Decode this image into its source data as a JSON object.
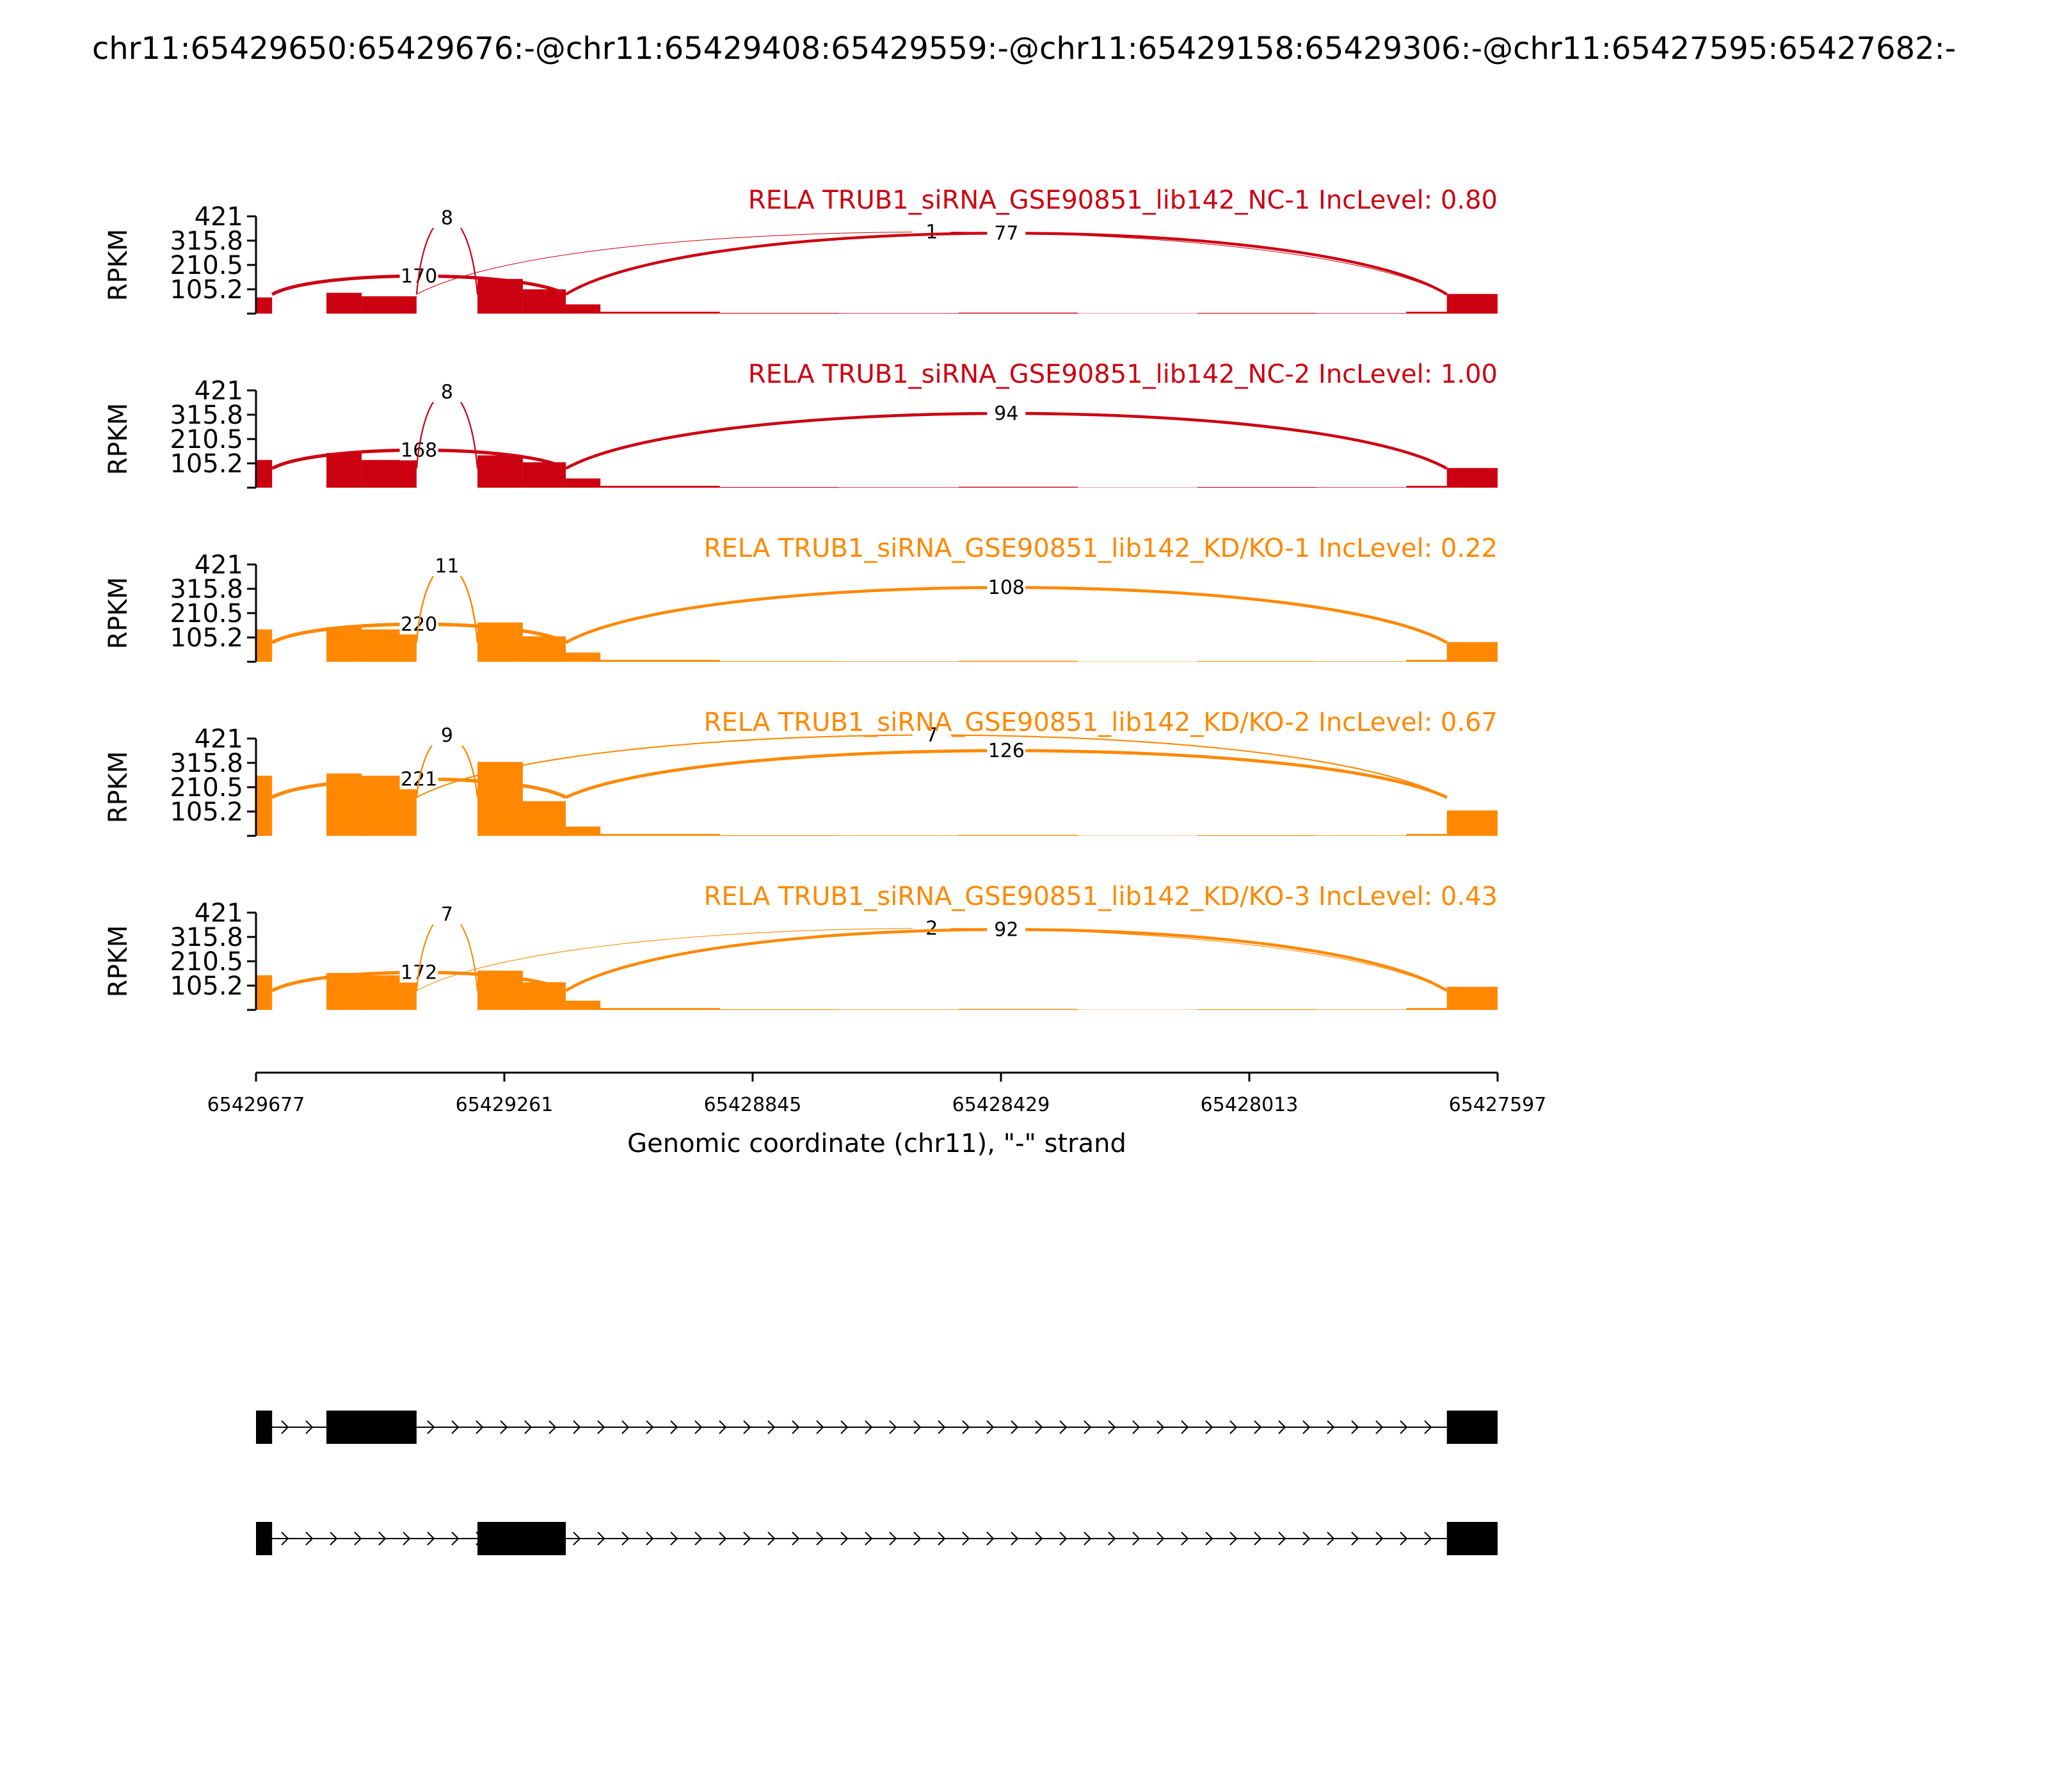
{
  "chart_data": {
    "type": "sashimi",
    "title": "chr11:65429650:65429676:-@chr11:65429408:65429559:-@chr11:65429158:65429306:-@chr11:65427595:65427682:-",
    "xlabel": "Genomic coordinate (chr11), \"-\" strand",
    "ylabel": "RPKM",
    "x_range": [
      65429677,
      65427597
    ],
    "x_ticks": [
      "65429677",
      "65429261",
      "65428845",
      "65428429",
      "65428013",
      "65427597"
    ],
    "y_range": [
      0,
      421
    ],
    "y_ticks": [
      "421",
      "315.8",
      "210.5",
      "105.2"
    ],
    "exons": [
      {
        "start": 65429676,
        "end": 65429650
      },
      {
        "start": 65429559,
        "end": 65429408
      },
      {
        "start": 65429306,
        "end": 65429158
      },
      {
        "start": 65427682,
        "end": 65427595
      }
    ],
    "transcripts": [
      {
        "exons": [
          [
            65429677,
            65429650
          ],
          [
            65429559,
            65429408
          ],
          [
            65427682,
            65427597
          ]
        ]
      },
      {
        "exons": [
          [
            65429677,
            65429650
          ],
          [
            65429306,
            65429158
          ],
          [
            65427682,
            65427597
          ]
        ]
      }
    ],
    "samples": [
      {
        "label": "RELA TRUB1_siRNA_GSE90851_lib142_NC-1 IncLevel: 0.80",
        "color": "#cc0011",
        "coverage": [
          70,
          0,
          90,
          75,
          0,
          150,
          105,
          40,
          8,
          3,
          2,
          4,
          1,
          3,
          2,
          8,
          85
        ],
        "junctions": [
          {
            "label": "170",
            "from": 65429650,
            "to": 65429158,
            "count": 170
          },
          {
            "label": "8",
            "from": 65429408,
            "to": 65429306,
            "count": 8
          },
          {
            "label": "1",
            "from": 65429408,
            "to": 65427682,
            "count": 1
          },
          {
            "label": "77",
            "from": 65429158,
            "to": 65427682,
            "count": 77
          }
        ]
      },
      {
        "label": "RELA TRUB1_siRNA_GSE90851_lib142_NC-2 IncLevel: 1.00",
        "color": "#cc0011",
        "coverage": [
          120,
          0,
          150,
          120,
          0,
          140,
          110,
          40,
          8,
          3,
          2,
          4,
          1,
          3,
          2,
          8,
          85
        ],
        "junctions": [
          {
            "label": "168",
            "from": 65429650,
            "to": 65429158,
            "count": 168
          },
          {
            "label": "8",
            "from": 65429408,
            "to": 65429306,
            "count": 8
          },
          {
            "label": "94",
            "from": 65429158,
            "to": 65427682,
            "count": 94
          }
        ]
      },
      {
        "label": "RELA TRUB1_siRNA_GSE90851_lib142_KD/KO-1 IncLevel: 0.22",
        "color": "#ff8800",
        "coverage": [
          140,
          0,
          150,
          140,
          0,
          170,
          110,
          40,
          8,
          3,
          2,
          4,
          1,
          3,
          2,
          8,
          85
        ],
        "junctions": [
          {
            "label": "220",
            "from": 65429650,
            "to": 65429158,
            "count": 220
          },
          {
            "label": "11",
            "from": 65429408,
            "to": 65429306,
            "count": 11
          },
          {
            "label": "108",
            "from": 65429158,
            "to": 65427682,
            "count": 108
          }
        ]
      },
      {
        "label": "RELA TRUB1_siRNA_GSE90851_lib142_KD/KO-2 IncLevel: 0.67",
        "color": "#ff8800",
        "coverage": [
          260,
          0,
          270,
          260,
          0,
          320,
          150,
          40,
          8,
          3,
          2,
          4,
          1,
          3,
          2,
          8,
          110
        ],
        "junctions": [
          {
            "label": "221",
            "from": 65429650,
            "to": 65429158,
            "count": 221
          },
          {
            "label": "9",
            "from": 65429408,
            "to": 65429306,
            "count": 9
          },
          {
            "label": "7",
            "from": 65429408,
            "to": 65427682,
            "count": 7
          },
          {
            "label": "126",
            "from": 65429158,
            "to": 65427682,
            "count": 126
          }
        ]
      },
      {
        "label": "RELA TRUB1_siRNA_GSE90851_lib142_KD/KO-3 IncLevel: 0.43",
        "color": "#ff8800",
        "coverage": [
          150,
          0,
          160,
          150,
          0,
          170,
          120,
          40,
          8,
          3,
          2,
          4,
          1,
          3,
          2,
          8,
          100
        ],
        "junctions": [
          {
            "label": "172",
            "from": 65429650,
            "to": 65429158,
            "count": 172
          },
          {
            "label": "7",
            "from": 65429408,
            "to": 65429306,
            "count": 7
          },
          {
            "label": "2",
            "from": 65429408,
            "to": 65427682,
            "count": 2
          },
          {
            "label": "92",
            "from": 65429158,
            "to": 65427682,
            "count": 92
          }
        ]
      }
    ]
  }
}
